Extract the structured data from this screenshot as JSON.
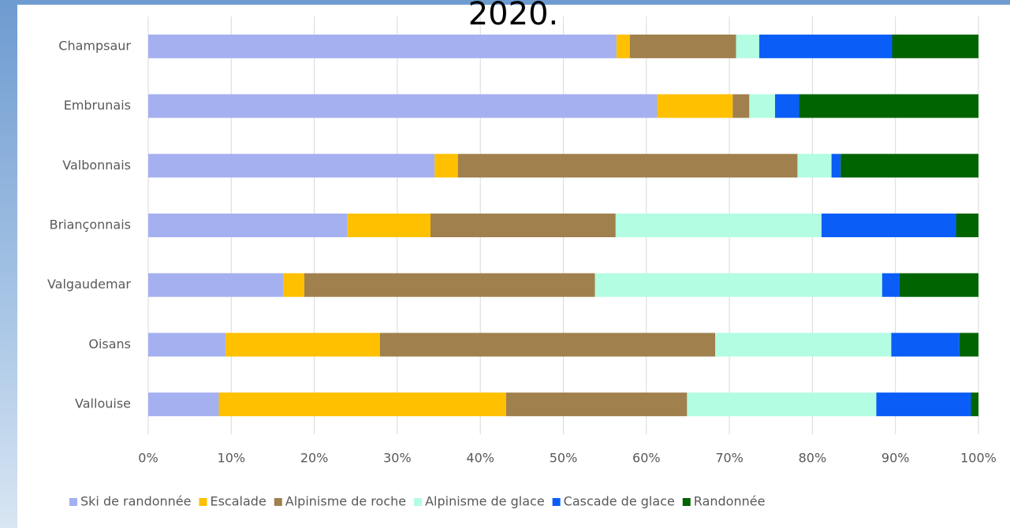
{
  "chart_data": {
    "type": "bar",
    "orientation": "horizontal",
    "stacked": true,
    "title": "2020.",
    "categories": [
      "Champsaur",
      "Embrunais",
      "Valbonnais",
      "Briançonnais",
      "Valgaudemar",
      "Oisans",
      "Vallouise"
    ],
    "series": [
      {
        "name": "Ski de randonnée",
        "color": "#a4b0f0",
        "values": [
          56.4,
          61.3,
          34.5,
          24.0,
          16.3,
          9.3,
          8.5
        ]
      },
      {
        "name": "Escalade",
        "color": "#ffc000",
        "values": [
          1.6,
          9.1,
          2.8,
          10.0,
          2.5,
          18.6,
          34.6
        ]
      },
      {
        "name": "Alpinisme de roche",
        "color": "#a0804d",
        "values": [
          12.8,
          2.0,
          40.9,
          22.3,
          35.0,
          40.4,
          21.8
        ]
      },
      {
        "name": "Alpinisme de glace",
        "color": "#b3fde2",
        "values": [
          2.8,
          3.1,
          4.1,
          24.8,
          34.6,
          21.2,
          22.8
        ]
      },
      {
        "name": "Cascade de glace",
        "color": "#0a5df7",
        "values": [
          16.0,
          2.9,
          1.1,
          16.2,
          2.1,
          8.2,
          11.4
        ]
      },
      {
        "name": "Randonnée",
        "color": "#006400",
        "values": [
          10.4,
          21.6,
          16.6,
          2.7,
          9.5,
          2.3,
          0.9
        ]
      }
    ],
    "xlim": [
      0,
      100
    ],
    "xticks": [
      {
        "value": 0,
        "label": "0%"
      },
      {
        "value": 10,
        "label": "10%"
      },
      {
        "value": 20,
        "label": "20%"
      },
      {
        "value": 30,
        "label": "30%"
      },
      {
        "value": 40,
        "label": "40%"
      },
      {
        "value": 50,
        "label": "50%"
      },
      {
        "value": 60,
        "label": "60%"
      },
      {
        "value": 70,
        "label": "70%"
      },
      {
        "value": 80,
        "label": "80%"
      },
      {
        "value": 90,
        "label": "90%"
      },
      {
        "value": 100,
        "label": "100%"
      }
    ],
    "grid": true,
    "legend": "bottom"
  }
}
